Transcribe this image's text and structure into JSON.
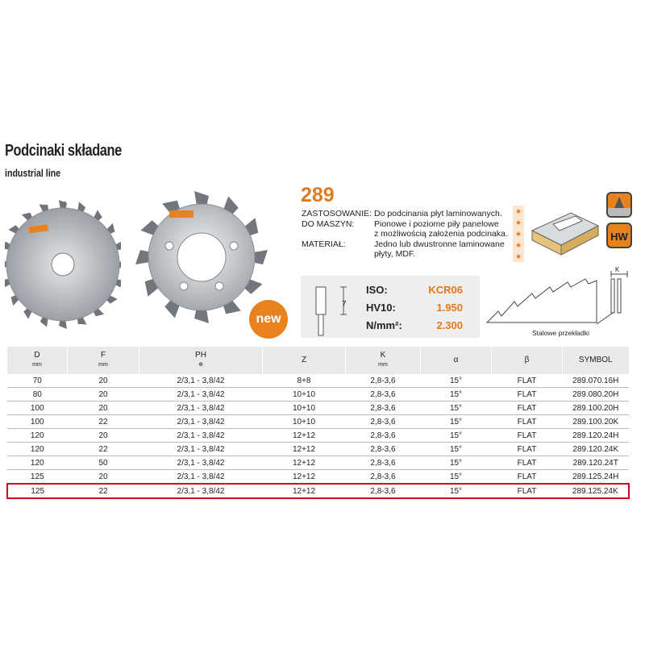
{
  "header": {
    "title": "Podcinaki składane",
    "subtitle": "industrial line",
    "code": "289"
  },
  "info": {
    "labels": [
      "ZASTOSOWANIE:",
      "DO MASZYN:",
      "",
      "MATERIAŁ:"
    ],
    "values": [
      "Do podcinania płyt laminowanych.",
      "Pionowe i poziome piły panelowe",
      "z możliwością założenia podcinaka.",
      "Jedno lub dwustronne laminowane",
      "płyty, MDF."
    ]
  },
  "badges": {
    "new": "new",
    "hw": "HW",
    "brand": "CMT"
  },
  "spec": {
    "dimension_label": "7",
    "rows": [
      {
        "label": "ISO:",
        "value": "KCR06"
      },
      {
        "label": "HV10:",
        "value": "1.950"
      },
      {
        "label": "N/mm²:",
        "value": "2.300"
      }
    ],
    "diagram_label_k": "K",
    "caption": "Stalowe przekładki"
  },
  "rating": {
    "stars": [
      "★",
      "★",
      "★",
      "★",
      "★"
    ]
  },
  "table": {
    "headers": [
      {
        "label": "D",
        "unit": "mm"
      },
      {
        "label": "F",
        "unit": "mm"
      },
      {
        "label": "PH",
        "unit": ""
      },
      {
        "label": "Z",
        "unit": ""
      },
      {
        "label": "K",
        "unit": "mm"
      },
      {
        "label": "α",
        "unit": ""
      },
      {
        "label": "β",
        "unit": ""
      },
      {
        "label": "SYMBOL",
        "unit": ""
      }
    ],
    "rows": [
      [
        "70",
        "20",
        "2/3,1 - 3,8/42",
        "8+8",
        "2,8-3,6",
        "15°",
        "FLAT",
        "289.070.16H"
      ],
      [
        "80",
        "20",
        "2/3,1 - 3,8/42",
        "10+10",
        "2,8-3,6",
        "15°",
        "FLAT",
        "289.080.20H"
      ],
      [
        "100",
        "20",
        "2/3,1 - 3,8/42",
        "10+10",
        "2,8-3,6",
        "15°",
        "FLAT",
        "289.100.20H"
      ],
      [
        "100",
        "22",
        "2/3,1 - 3,8/42",
        "10+10",
        "2,8-3,6",
        "15°",
        "FLAT",
        "289.100.20K"
      ],
      [
        "120",
        "20",
        "2/3,1 - 3,8/42",
        "12+12",
        "2,8-3,6",
        "15°",
        "FLAT",
        "289.120.24H"
      ],
      [
        "120",
        "22",
        "2/3,1 - 3,8/42",
        "12+12",
        "2,8-3,6",
        "15°",
        "FLAT",
        "289.120.24K"
      ],
      [
        "120",
        "50",
        "2/3,1 - 3,8/42",
        "12+12",
        "2,8-3,6",
        "15°",
        "FLAT",
        "289.120.24T"
      ],
      [
        "125",
        "20",
        "2/3,1 - 3,8/42",
        "12+12",
        "2,8-3,6",
        "15°",
        "FLAT",
        "289.125.24H"
      ],
      [
        "125",
        "22",
        "2/3,1 - 3,8/42",
        "12+12",
        "2,8-3,6",
        "15°",
        "FLAT",
        "289.125.24K"
      ]
    ],
    "highlight_row": 8
  }
}
